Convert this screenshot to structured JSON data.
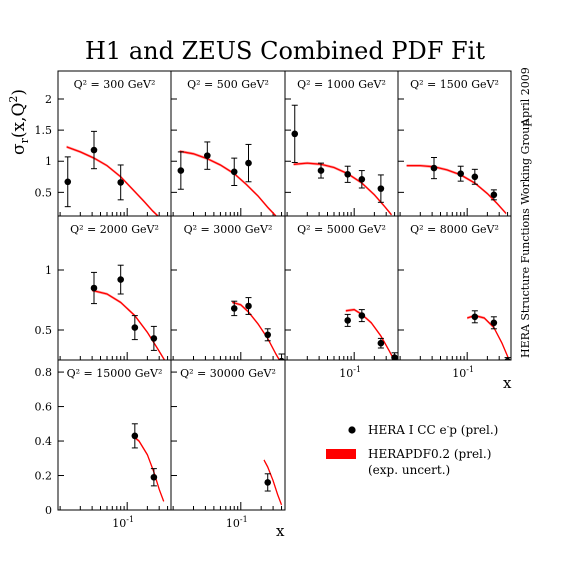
{
  "title": "H1 and ZEUS Combined PDF Fit",
  "side_date": "April 2009",
  "side_group": "HERA Structure Functions Working Group",
  "ylabel": {
    "main": "σ",
    "sub": "r",
    "args": "(x,Q",
    "sup": "2",
    "close": ")"
  },
  "x_axis_label": "x",
  "legend": {
    "data_label": "HERA I CC e",
    "data_sup": "-",
    "data_tail": "p (prel.)",
    "fit_label": "HERAPDF0.2 (prel.)",
    "fit_note": "(exp. uncert.)",
    "fit_color": "#ff0000"
  },
  "chart_data": {
    "type": "scatter",
    "x_scale": "log",
    "xlim": [
      0.0093,
      0.45
    ],
    "x_tick_label": "10",
    "x_tick_exp": "-1",
    "x_tick_value": 0.1,
    "rows": [
      {
        "ylim": [
          0.12,
          2.45
        ],
        "yticks": [
          {
            "v": 0.5,
            "t": "0.5"
          },
          {
            "v": 1,
            "t": "1"
          },
          {
            "v": 1.5,
            "t": "1.5"
          },
          {
            "v": 2,
            "t": "2"
          }
        ]
      },
      {
        "ylim": [
          0.25,
          1.45
        ],
        "yticks": [
          {
            "v": 0.5,
            "t": "0.5"
          },
          {
            "v": 1,
            "t": "1"
          }
        ]
      },
      {
        "ylim": [
          0,
          0.87
        ],
        "yticks": [
          {
            "v": 0,
            "t": "0"
          },
          {
            "v": 0.2,
            "t": "0.2"
          },
          {
            "v": 0.4,
            "t": "0.4"
          },
          {
            "v": 0.6,
            "t": "0.6"
          },
          {
            "v": 0.8,
            "t": "0.8"
          }
        ]
      }
    ],
    "panels": [
      {
        "label": "Q² = 300 GeV²",
        "q2": "300",
        "row": 0,
        "col": 0,
        "points": [
          {
            "x": 0.013,
            "y": 0.67,
            "err": 0.4
          },
          {
            "x": 0.032,
            "y": 1.18,
            "err": 0.3
          },
          {
            "x": 0.08,
            "y": 0.66,
            "err": 0.28
          }
        ],
        "fit": [
          [
            0.0125,
            1.23
          ],
          [
            0.02,
            1.15
          ],
          [
            0.032,
            1.05
          ],
          [
            0.05,
            0.93
          ],
          [
            0.08,
            0.75
          ],
          [
            0.12,
            0.55
          ],
          [
            0.18,
            0.35
          ],
          [
            0.24,
            0.2
          ],
          [
            0.3,
            0.1
          ]
        ]
      },
      {
        "label": "Q² = 500 GeV²",
        "q2": "500",
        "row": 0,
        "col": 1,
        "points": [
          {
            "x": 0.013,
            "y": 0.85,
            "err": 0.3
          },
          {
            "x": 0.032,
            "y": 1.09,
            "err": 0.22
          },
          {
            "x": 0.08,
            "y": 0.83,
            "err": 0.22
          },
          {
            "x": 0.13,
            "y": 0.97,
            "err": 0.3
          }
        ],
        "fit": [
          [
            0.0125,
            1.16
          ],
          [
            0.02,
            1.12
          ],
          [
            0.032,
            1.04
          ],
          [
            0.05,
            0.94
          ],
          [
            0.08,
            0.8
          ],
          [
            0.12,
            0.63
          ],
          [
            0.18,
            0.44
          ],
          [
            0.25,
            0.26
          ],
          [
            0.33,
            0.12
          ]
        ]
      },
      {
        "label": "Q² = 1000 GeV²",
        "q2": "1000",
        "row": 0,
        "col": 2,
        "points": [
          {
            "x": 0.013,
            "y": 1.44,
            "err": 0.46
          },
          {
            "x": 0.032,
            "y": 0.85,
            "err": 0.12
          },
          {
            "x": 0.08,
            "y": 0.79,
            "err": 0.13
          },
          {
            "x": 0.13,
            "y": 0.71,
            "err": 0.14
          },
          {
            "x": 0.25,
            "y": 0.56,
            "err": 0.22
          }
        ],
        "fit": [
          [
            0.0125,
            0.95
          ],
          [
            0.02,
            0.97
          ],
          [
            0.032,
            0.95
          ],
          [
            0.05,
            0.9
          ],
          [
            0.08,
            0.8
          ],
          [
            0.13,
            0.65
          ],
          [
            0.2,
            0.46
          ],
          [
            0.28,
            0.28
          ],
          [
            0.36,
            0.14
          ]
        ]
      },
      {
        "label": "Q² = 1500 GeV²",
        "q2": "1500",
        "row": 0,
        "col": 3,
        "points": [
          {
            "x": 0.032,
            "y": 0.89,
            "err": 0.17
          },
          {
            "x": 0.08,
            "y": 0.8,
            "err": 0.12
          },
          {
            "x": 0.13,
            "y": 0.75,
            "err": 0.12
          },
          {
            "x": 0.25,
            "y": 0.46,
            "err": 0.08
          }
        ],
        "fit": [
          [
            0.0125,
            0.93
          ],
          [
            0.02,
            0.93
          ],
          [
            0.032,
            0.91
          ],
          [
            0.05,
            0.86
          ],
          [
            0.08,
            0.78
          ],
          [
            0.13,
            0.65
          ],
          [
            0.2,
            0.48
          ],
          [
            0.28,
            0.32
          ],
          [
            0.38,
            0.16
          ]
        ]
      },
      {
        "label": "Q² = 2000 GeV²",
        "q2": "2000",
        "row": 1,
        "col": 0,
        "points": [
          {
            "x": 0.032,
            "y": 0.85,
            "err": 0.13
          },
          {
            "x": 0.08,
            "y": 0.92,
            "err": 0.12
          },
          {
            "x": 0.13,
            "y": 0.52,
            "err": 0.1
          },
          {
            "x": 0.25,
            "y": 0.43,
            "err": 0.1
          }
        ],
        "fit": [
          [
            0.03,
            0.83
          ],
          [
            0.05,
            0.8
          ],
          [
            0.08,
            0.73
          ],
          [
            0.13,
            0.62
          ],
          [
            0.2,
            0.48
          ],
          [
            0.28,
            0.35
          ],
          [
            0.36,
            0.25
          ]
        ]
      },
      {
        "label": "Q² = 3000 GeV²",
        "q2": "3000",
        "row": 1,
        "col": 1,
        "points": [
          {
            "x": 0.08,
            "y": 0.68,
            "err": 0.06
          },
          {
            "x": 0.13,
            "y": 0.7,
            "err": 0.07
          },
          {
            "x": 0.25,
            "y": 0.46,
            "err": 0.05
          },
          {
            "x": 0.4,
            "y": 0.24,
            "err": 0.06
          }
        ],
        "fit": [
          [
            0.075,
            0.73
          ],
          [
            0.1,
            0.71
          ],
          [
            0.13,
            0.65
          ],
          [
            0.18,
            0.55
          ],
          [
            0.25,
            0.43
          ],
          [
            0.33,
            0.3
          ],
          [
            0.4,
            0.22
          ]
        ]
      },
      {
        "label": "Q² = 5000 GeV²",
        "q2": "5000",
        "row": 1,
        "col": 2,
        "points": [
          {
            "x": 0.08,
            "y": 0.58,
            "err": 0.05
          },
          {
            "x": 0.13,
            "y": 0.62,
            "err": 0.05
          },
          {
            "x": 0.25,
            "y": 0.39,
            "err": 0.04
          },
          {
            "x": 0.4,
            "y": 0.27,
            "err": 0.04
          }
        ],
        "fit": [
          [
            0.075,
            0.66
          ],
          [
            0.1,
            0.67
          ],
          [
            0.13,
            0.63
          ],
          [
            0.18,
            0.56
          ],
          [
            0.25,
            0.45
          ],
          [
            0.33,
            0.33
          ],
          [
            0.42,
            0.22
          ]
        ]
      },
      {
        "label": "Q² = 8000 GeV²",
        "q2": "8000",
        "row": 1,
        "col": 3,
        "points": [
          {
            "x": 0.13,
            "y": 0.61,
            "err": 0.05
          },
          {
            "x": 0.25,
            "y": 0.56,
            "err": 0.05
          },
          {
            "x": 0.4,
            "y": 0.24,
            "err": 0.03
          }
        ],
        "fit": [
          [
            0.1,
            0.6
          ],
          [
            0.13,
            0.62
          ],
          [
            0.18,
            0.6
          ],
          [
            0.25,
            0.52
          ],
          [
            0.33,
            0.39
          ],
          [
            0.4,
            0.28
          ],
          [
            0.45,
            0.2
          ]
        ]
      },
      {
        "label": "Q² = 15000 GeV²",
        "q2": "15000",
        "row": 2,
        "col": 0,
        "points": [
          {
            "x": 0.13,
            "y": 0.43,
            "err": 0.07
          },
          {
            "x": 0.25,
            "y": 0.19,
            "err": 0.05
          }
        ],
        "fit": [
          [
            0.12,
            0.43
          ],
          [
            0.15,
            0.4
          ],
          [
            0.2,
            0.32
          ],
          [
            0.25,
            0.22
          ],
          [
            0.3,
            0.12
          ],
          [
            0.35,
            0.05
          ]
        ]
      },
      {
        "label": "Q² = 30000 GeV²",
        "q2": "30000",
        "row": 2,
        "col": 1,
        "points": [
          {
            "x": 0.25,
            "y": 0.16,
            "err": 0.05
          }
        ],
        "fit": [
          [
            0.22,
            0.29
          ],
          [
            0.25,
            0.25
          ],
          [
            0.3,
            0.17
          ],
          [
            0.35,
            0.09
          ],
          [
            0.4,
            0.03
          ]
        ]
      }
    ]
  }
}
